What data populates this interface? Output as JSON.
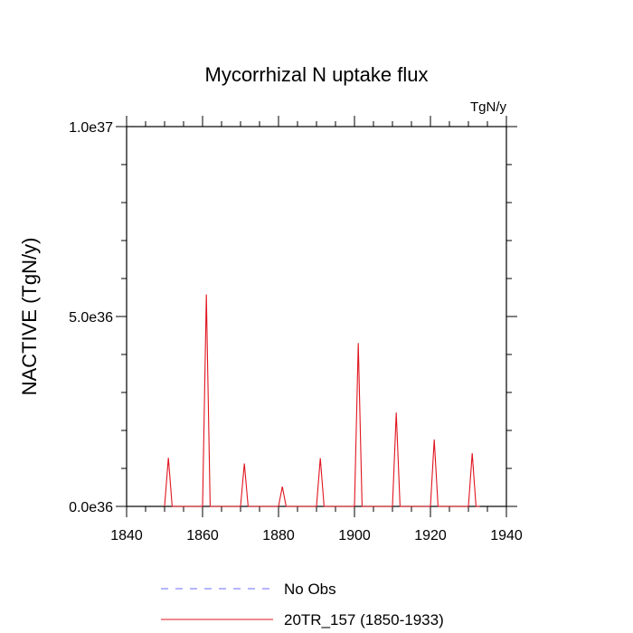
{
  "chart_data": {
    "type": "line",
    "title": "Mycorrhizal N uptake flux",
    "units_label": "TgN/y",
    "ylabel": "NACTIVE  (TgN/y)",
    "xlabel": "",
    "xlim": [
      1840,
      1940
    ],
    "ylim": [
      0,
      1e+37
    ],
    "x_ticks": [
      1840,
      1860,
      1880,
      1900,
      1920,
      1940
    ],
    "x_tick_labels": [
      "1840",
      "1860",
      "1880",
      "1900",
      "1920",
      "1940"
    ],
    "y_ticks": [
      0,
      5e+36,
      1e+37
    ],
    "y_tick_labels": [
      "0.0e36",
      "5.0e36",
      "1.0e37"
    ],
    "grid": false,
    "legend_position": "bottom",
    "series": [
      {
        "name": "No Obs",
        "color": "#6d6dff",
        "dashed": true,
        "x": [],
        "y": []
      },
      {
        "name": "20TR_157 (1850-1933)",
        "color": "#e0141e",
        "dashed": false,
        "x": [
          1850,
          1851,
          1852,
          1860,
          1861,
          1862,
          1870,
          1871,
          1872,
          1880,
          1881,
          1882,
          1890,
          1891,
          1892,
          1900,
          1901,
          1902,
          1910,
          1911,
          1912,
          1920,
          1921,
          1922,
          1930,
          1931,
          1932,
          1933
        ],
        "y": [
          0,
          1.28e+36,
          0,
          0,
          5.58e+36,
          0,
          0,
          1.13e+36,
          0,
          0,
          5.2e+35,
          0,
          0,
          1.27e+36,
          0,
          0,
          4.3e+36,
          0,
          0,
          2.47e+36,
          0,
          0,
          1.76e+36,
          0,
          0,
          1.4e+36,
          0,
          0
        ]
      }
    ]
  }
}
